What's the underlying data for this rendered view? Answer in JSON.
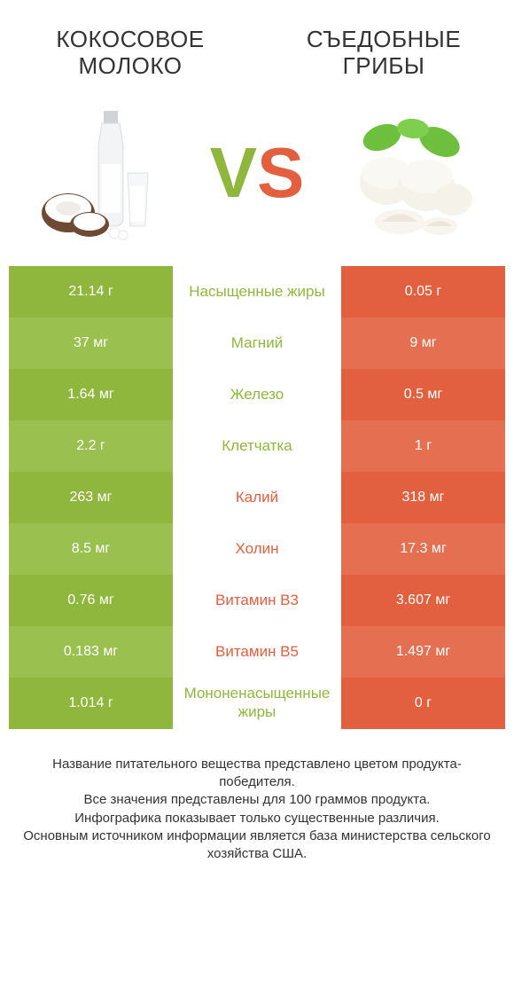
{
  "titles": {
    "left": "Кокосовое молоко",
    "right": "Съедобные грибы"
  },
  "vs": {
    "v": "V",
    "s": "S"
  },
  "colors": {
    "green_a": "#8fb73e",
    "green_b": "#9ac04f",
    "orange_a": "#e2603f",
    "orange_b": "#e56f51",
    "label_green": "#8fb73e",
    "label_orange": "#e2603f",
    "text": "#333333",
    "white": "#ffffff"
  },
  "rows": [
    {
      "left": "21.14 г",
      "label": "Насыщенные жиры",
      "right": "0.05 г",
      "winner": "left"
    },
    {
      "left": "37 мг",
      "label": "Магний",
      "right": "9 мг",
      "winner": "left"
    },
    {
      "left": "1.64 мг",
      "label": "Железо",
      "right": "0.5 мг",
      "winner": "left"
    },
    {
      "left": "2.2 г",
      "label": "Клетчатка",
      "right": "1 г",
      "winner": "left"
    },
    {
      "left": "263 мг",
      "label": "Калий",
      "right": "318 мг",
      "winner": "right"
    },
    {
      "left": "8.5 мг",
      "label": "Холин",
      "right": "17.3 мг",
      "winner": "right"
    },
    {
      "left": "0.76 мг",
      "label": "Витамин B3",
      "right": "3.607 мг",
      "winner": "right"
    },
    {
      "left": "0.183 мг",
      "label": "Витамин B5",
      "right": "1.497 мг",
      "winner": "right"
    },
    {
      "left": "1.014 г",
      "label": "Мононенасыщенные жиры",
      "right": "0 г",
      "winner": "left"
    }
  ],
  "footer": {
    "line1": "Название питательного вещества представлено цветом продукта-победителя.",
    "line2": "Все значения представлены для 100 граммов продукта.",
    "line3": "Инфографика показывает только существенные различия.",
    "line4": "Основным источником информации является база министерства сельского хозяйства США."
  }
}
